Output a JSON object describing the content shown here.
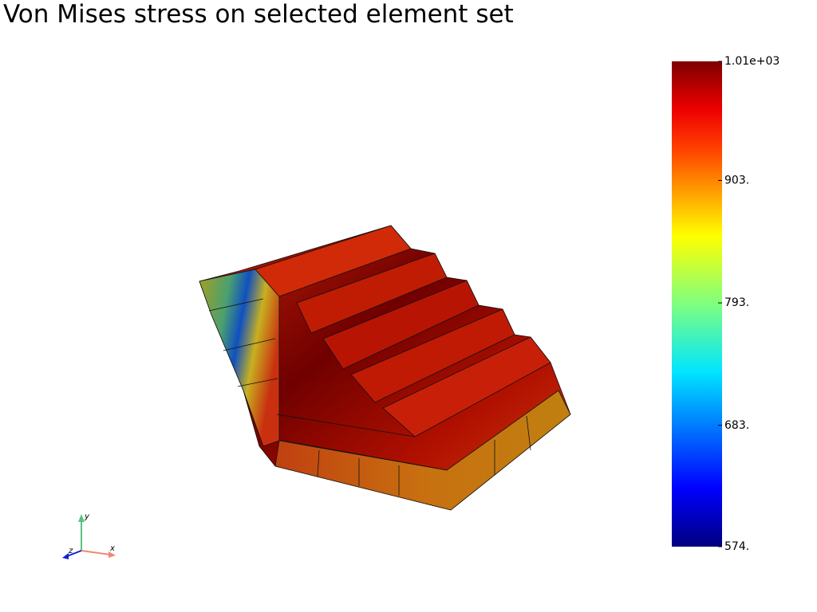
{
  "title": "Von Mises stress on selected element set",
  "colorbar": {
    "range": [
      574,
      1010
    ],
    "ticks": [
      {
        "value": 1010,
        "label": "1.01e+03"
      },
      {
        "value": 903,
        "label": "903."
      },
      {
        "value": 793,
        "label": "793."
      },
      {
        "value": 683,
        "label": "683."
      },
      {
        "value": 574,
        "label": "574."
      }
    ]
  },
  "axes_widget": {
    "x": "x",
    "y": "y",
    "z": "z"
  }
}
